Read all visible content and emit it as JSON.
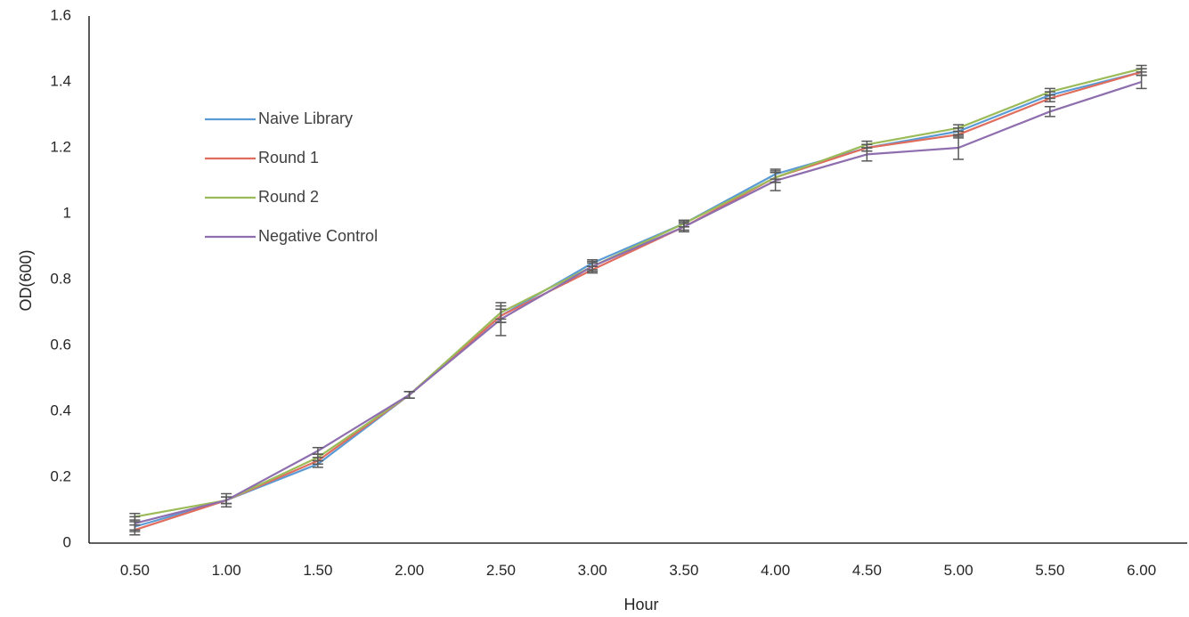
{
  "chart_data": {
    "type": "line",
    "title": "",
    "xlabel": "Hour",
    "ylabel": "OD(600)",
    "categories": [
      "0.50",
      "1.00",
      "1.50",
      "2.00",
      "2.50",
      "3.00",
      "3.50",
      "4.00",
      "4.50",
      "5.00",
      "5.50",
      "6.00"
    ],
    "y_ticks": [
      "0",
      "0.2",
      "0.4",
      "0.6",
      "0.8",
      "1",
      "1.2",
      "1.4",
      "1.6"
    ],
    "ylim": [
      0,
      1.6
    ],
    "grid": false,
    "legend_position": "upper-left inside plot",
    "error_bar_color": "#595959",
    "series": [
      {
        "name": "Naive Library",
        "color": "#5B9BD5",
        "values": [
          0.05,
          0.13,
          0.24,
          0.45,
          0.69,
          0.85,
          0.97,
          1.12,
          1.2,
          1.25,
          1.36,
          1.43
        ],
        "errors": [
          0.015,
          0.01,
          0.01,
          0.01,
          0.02,
          0.01,
          0.01,
          0.015,
          0.01,
          0.01,
          0.01,
          0.01
        ]
      },
      {
        "name": "Round 1",
        "color": "#E06D5E",
        "values": [
          0.04,
          0.13,
          0.25,
          0.45,
          0.69,
          0.83,
          0.96,
          1.11,
          1.2,
          1.24,
          1.35,
          1.43
        ],
        "errors": [
          0.015,
          0.01,
          0.01,
          0.01,
          0.02,
          0.01,
          0.01,
          0.015,
          0.01,
          0.01,
          0.01,
          0.01
        ]
      },
      {
        "name": "Round 2",
        "color": "#9BBB59",
        "values": [
          0.08,
          0.13,
          0.26,
          0.45,
          0.7,
          0.84,
          0.97,
          1.11,
          1.21,
          1.26,
          1.37,
          1.44
        ],
        "errors": [
          0.01,
          0.01,
          0.01,
          0.01,
          0.02,
          0.01,
          0.01,
          0.015,
          0.01,
          0.01,
          0.01,
          0.01
        ]
      },
      {
        "name": "Negative Control",
        "color": "#8E6EAE",
        "values": [
          0.06,
          0.13,
          0.28,
          0.45,
          0.68,
          0.84,
          0.96,
          1.1,
          1.18,
          1.2,
          1.31,
          1.4
        ],
        "errors": [
          0.02,
          0.02,
          0.01,
          0.01,
          0.05,
          0.015,
          0.015,
          0.03,
          0.02,
          0.035,
          0.015,
          0.02
        ]
      }
    ]
  }
}
